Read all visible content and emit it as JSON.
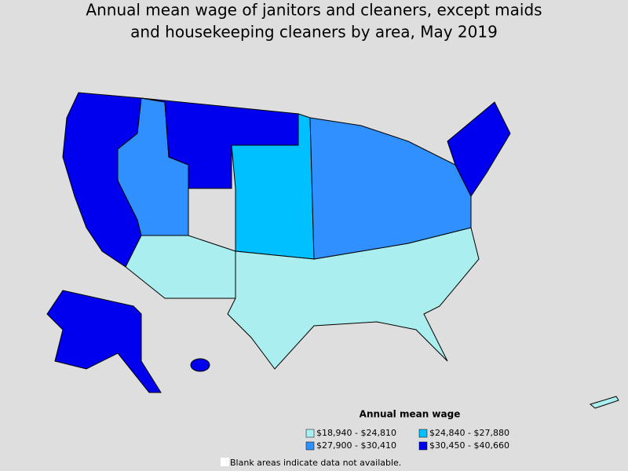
{
  "title_lines": [
    "Annual mean wage of janitors and cleaners, except maids",
    "and housekeeping cleaners by area, May 2019"
  ],
  "legend": {
    "title": "Annual mean wage",
    "items": [
      {
        "label": "$18,940 - $24,810",
        "color": "#aaeef0"
      },
      {
        "label": "$24,840 - $27,880",
        "color": "#00c0ff"
      },
      {
        "label": "$27,900 - $30,410",
        "color": "#3090ff"
      },
      {
        "label": "$30,450 - $40,660",
        "color": "#0000ee"
      }
    ]
  },
  "note": "Blank areas indicate data not available."
}
